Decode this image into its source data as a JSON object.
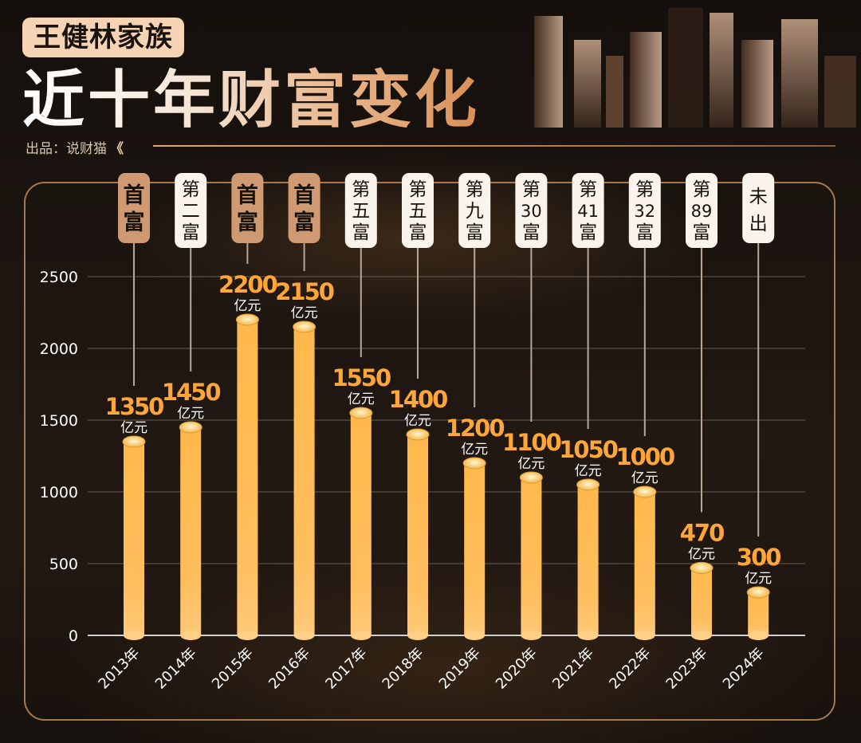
{
  "header": {
    "tag": "王健林家族",
    "title": "近十年财富变化",
    "source": "出品：说财猫",
    "source_chevron": "《"
  },
  "colors": {
    "bar_top": "#ffe49a",
    "bar_mid": "#ffb84a",
    "bar_bottom": "#ffc978",
    "value_label": "#ffa63a",
    "rank_highlight_bg": "#cf9a72",
    "rank_normal_bg": "#fbf4ec",
    "frame": "#a7784f"
  },
  "chart_data": {
    "type": "bar",
    "categories": [
      "2013年",
      "2014年",
      "2015年",
      "2016年",
      "2017年",
      "2018年",
      "2019年",
      "2020年",
      "2021年",
      "2022年",
      "2023年",
      "2024年"
    ],
    "values": [
      1350,
      1450,
      2200,
      2150,
      1550,
      1400,
      1200,
      1100,
      1050,
      1000,
      470,
      300
    ],
    "value_labels": [
      "1350",
      "1450",
      "2200",
      "2150",
      "1550",
      "1400",
      "1200",
      "1100",
      "1050",
      "1000",
      "470",
      "300"
    ],
    "unit": "亿元",
    "ranks": [
      {
        "lines": [
          "首",
          "富"
        ],
        "highlight": true
      },
      {
        "lines": [
          "第",
          "二",
          "富"
        ],
        "highlight": false
      },
      {
        "lines": [
          "首",
          "富"
        ],
        "highlight": true
      },
      {
        "lines": [
          "首",
          "富"
        ],
        "highlight": true
      },
      {
        "lines": [
          "第",
          "五",
          "富"
        ],
        "highlight": false
      },
      {
        "lines": [
          "第",
          "五",
          "富"
        ],
        "highlight": false
      },
      {
        "lines": [
          "第",
          "九",
          "富"
        ],
        "highlight": false
      },
      {
        "lines": [
          "第",
          "30",
          "富"
        ],
        "highlight": false
      },
      {
        "lines": [
          "第",
          "41",
          "富"
        ],
        "highlight": false
      },
      {
        "lines": [
          "第",
          "32",
          "富"
        ],
        "highlight": false
      },
      {
        "lines": [
          "第",
          "89",
          "富"
        ],
        "highlight": false
      },
      {
        "lines": [
          "未",
          "出"
        ],
        "highlight": false
      }
    ],
    "y_ticks": [
      0,
      500,
      1000,
      1500,
      2000,
      2500
    ],
    "ylim": [
      0,
      2500
    ],
    "grid": true,
    "legend": "none"
  }
}
